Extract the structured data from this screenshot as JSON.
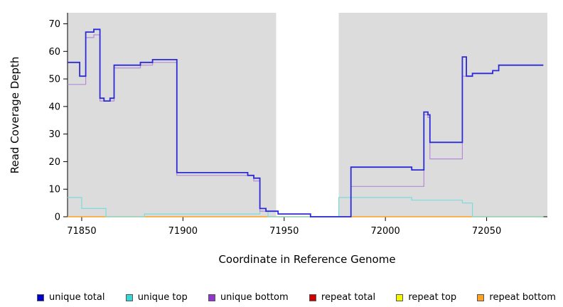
{
  "chart_data": {
    "type": "line",
    "subtype": "step-after",
    "title": "",
    "xlabel": "Coordinate in Reference Genome",
    "ylabel": "Read Coverage Depth",
    "xlim": [
      71843,
      72080
    ],
    "ylim": [
      0,
      74
    ],
    "x_ticks": [
      71850,
      71900,
      71950,
      72000,
      72050
    ],
    "y_ticks": [
      0,
      10,
      20,
      30,
      40,
      50,
      60,
      70
    ],
    "grid": false,
    "legend_position": "bottom",
    "plot_background_color": "#ffffff",
    "shaded_region_color": "#dcdcdc",
    "background_regions": [
      {
        "x0": 71843,
        "x1": 71946
      },
      {
        "x0": 71977,
        "x1": 72080
      }
    ],
    "x_end": 72078,
    "draw_order": [
      3,
      4,
      5,
      1,
      2,
      0
    ],
    "series": [
      {
        "name": "unique total",
        "color": "#2b2bd5",
        "legend_color": "#0000cc",
        "line_width": 1.8,
        "points": [
          [
            71843,
            56
          ],
          [
            71849,
            51
          ],
          [
            71852,
            67
          ],
          [
            71856,
            68
          ],
          [
            71859,
            43
          ],
          [
            71861,
            42
          ],
          [
            71864,
            43
          ],
          [
            71866,
            55
          ],
          [
            71879,
            56
          ],
          [
            71885,
            57
          ],
          [
            71897,
            16
          ],
          [
            71932,
            15
          ],
          [
            71935,
            14
          ],
          [
            71938,
            3
          ],
          [
            71941,
            2
          ],
          [
            71947,
            1
          ],
          [
            71963,
            0
          ],
          [
            71983,
            18
          ],
          [
            72013,
            17
          ],
          [
            72019,
            38
          ],
          [
            72021,
            37
          ],
          [
            72022,
            27
          ],
          [
            72038,
            58
          ],
          [
            72040,
            51
          ],
          [
            72043,
            52
          ],
          [
            72053,
            53
          ],
          [
            72056,
            55
          ]
        ]
      },
      {
        "name": "unique top",
        "color": "#7adddd",
        "legend_color": "#3ad6d6",
        "line_width": 1.2,
        "points": [
          [
            71843,
            7
          ],
          [
            71850,
            3
          ],
          [
            71862,
            0
          ],
          [
            71881,
            1
          ],
          [
            71938,
            2
          ],
          [
            71942,
            0
          ],
          [
            71977,
            7
          ],
          [
            72013,
            6
          ],
          [
            72038,
            5
          ],
          [
            72043,
            0
          ]
        ]
      },
      {
        "name": "unique bottom",
        "color": "#b48ad8",
        "legend_color": "#9136cc",
        "line_width": 1.2,
        "points": [
          [
            71843,
            48
          ],
          [
            71852,
            65
          ],
          [
            71856,
            66
          ],
          [
            71859,
            42
          ],
          [
            71866,
            54
          ],
          [
            71879,
            55
          ],
          [
            71885,
            56
          ],
          [
            71897,
            15
          ],
          [
            71935,
            13
          ],
          [
            71938,
            2
          ],
          [
            71947,
            1
          ],
          [
            71963,
            0
          ],
          [
            71983,
            11
          ],
          [
            72019,
            37
          ],
          [
            72021,
            36
          ],
          [
            72022,
            21
          ],
          [
            72038,
            51
          ],
          [
            72043,
            52
          ],
          [
            72053,
            53
          ],
          [
            72056,
            55
          ]
        ]
      },
      {
        "name": "repeat total",
        "color": "#cc0000",
        "legend_color": "#cc0000",
        "line_width": 1.0,
        "points": [
          [
            71843,
            0
          ]
        ]
      },
      {
        "name": "repeat top",
        "color": "#e8e800",
        "legend_color": "#f5f500",
        "line_width": 1.0,
        "points": [
          [
            71843,
            0
          ]
        ]
      },
      {
        "name": "repeat bottom",
        "color": "#ffa020",
        "legend_color": "#ffa020",
        "line_width": 1.4,
        "points": [
          [
            71843,
            0
          ]
        ]
      }
    ]
  }
}
